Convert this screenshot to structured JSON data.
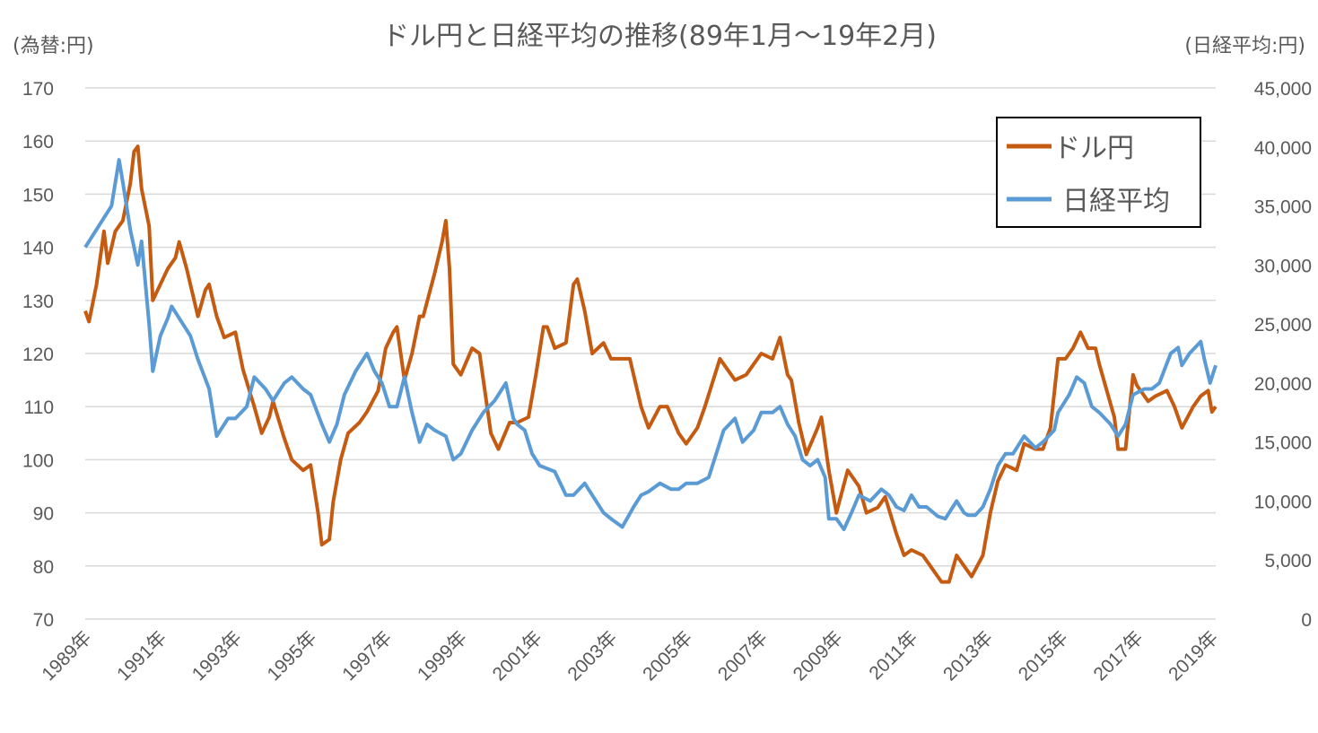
{
  "chart_data": {
    "type": "line",
    "title": "ドル円と日経平均の推移(89年1月～19年2月)",
    "ylabel_left": "(為替:円)",
    "ylabel_right": "(日経平均:円)",
    "xlim": [
      1989.0,
      2019.1
    ],
    "ylim_left": [
      70,
      170
    ],
    "ylim_right": [
      0,
      45000
    ],
    "yticks_left": [
      "70",
      "80",
      "90",
      "100",
      "110",
      "120",
      "130",
      "140",
      "150",
      "160",
      "170"
    ],
    "yticks_left_values": [
      70,
      80,
      90,
      100,
      110,
      120,
      130,
      140,
      150,
      160,
      170
    ],
    "yticks_right": [
      "0",
      "5,000",
      "10,000",
      "15,000",
      "20,000",
      "25,000",
      "30,000",
      "35,000",
      "40,000",
      "45,000"
    ],
    "yticks_right_values": [
      0,
      5000,
      10000,
      15000,
      20000,
      25000,
      30000,
      35000,
      40000,
      45000
    ],
    "xticks": [
      "1989年",
      "1991年",
      "1993年",
      "1995年",
      "1997年",
      "1999年",
      "2001年",
      "2003年",
      "2005年",
      "2007年",
      "2009年",
      "2011年",
      "2013年",
      "2015年",
      "2017年",
      "2019年"
    ],
    "xticks_values": [
      1989,
      1991,
      1993,
      1995,
      1997,
      1999,
      2001,
      2003,
      2005,
      2007,
      2009,
      2011,
      2013,
      2015,
      2017,
      2019
    ],
    "grid": true,
    "legend_placement": "top-right",
    "series": [
      {
        "name": "ドル円",
        "axis": "left",
        "color": "#C55A11",
        "points": [
          [
            1989.0,
            128
          ],
          [
            1989.1,
            126
          ],
          [
            1989.3,
            133
          ],
          [
            1989.5,
            143
          ],
          [
            1989.6,
            137
          ],
          [
            1989.8,
            143
          ],
          [
            1990.0,
            145
          ],
          [
            1990.2,
            152
          ],
          [
            1990.3,
            158
          ],
          [
            1990.4,
            159
          ],
          [
            1990.5,
            151
          ],
          [
            1990.7,
            144
          ],
          [
            1990.8,
            130
          ],
          [
            1991.0,
            133
          ],
          [
            1991.2,
            136
          ],
          [
            1991.4,
            138
          ],
          [
            1991.5,
            141
          ],
          [
            1991.7,
            136
          ],
          [
            1991.9,
            130
          ],
          [
            1992.0,
            127
          ],
          [
            1992.2,
            132
          ],
          [
            1992.3,
            133
          ],
          [
            1992.5,
            127
          ],
          [
            1992.7,
            123
          ],
          [
            1993.0,
            124
          ],
          [
            1993.2,
            117
          ],
          [
            1993.5,
            110
          ],
          [
            1993.7,
            105
          ],
          [
            1993.9,
            108
          ],
          [
            1994.0,
            111
          ],
          [
            1994.3,
            104
          ],
          [
            1994.5,
            100
          ],
          [
            1994.8,
            98
          ],
          [
            1995.0,
            99
          ],
          [
            1995.2,
            90
          ],
          [
            1995.3,
            84
          ],
          [
            1995.5,
            85
          ],
          [
            1995.6,
            92
          ],
          [
            1995.8,
            100
          ],
          [
            1996.0,
            105
          ],
          [
            1996.3,
            107
          ],
          [
            1996.5,
            109
          ],
          [
            1996.8,
            113
          ],
          [
            1997.0,
            121
          ],
          [
            1997.2,
            124
          ],
          [
            1997.3,
            125
          ],
          [
            1997.5,
            115
          ],
          [
            1997.7,
            120
          ],
          [
            1997.9,
            127
          ],
          [
            1998.0,
            127
          ],
          [
            1998.3,
            135
          ],
          [
            1998.5,
            141
          ],
          [
            1998.6,
            145
          ],
          [
            1998.7,
            136
          ],
          [
            1998.8,
            118
          ],
          [
            1999.0,
            116
          ],
          [
            1999.3,
            121
          ],
          [
            1999.5,
            120
          ],
          [
            1999.8,
            105
          ],
          [
            2000.0,
            102
          ],
          [
            2000.3,
            107
          ],
          [
            2000.5,
            107
          ],
          [
            2000.8,
            108
          ],
          [
            2001.0,
            116
          ],
          [
            2001.2,
            125
          ],
          [
            2001.3,
            125
          ],
          [
            2001.5,
            121
          ],
          [
            2001.8,
            122
          ],
          [
            2002.0,
            133
          ],
          [
            2002.1,
            134
          ],
          [
            2002.3,
            128
          ],
          [
            2002.5,
            120
          ],
          [
            2002.8,
            122
          ],
          [
            2003.0,
            119
          ],
          [
            2003.5,
            119
          ],
          [
            2003.8,
            110
          ],
          [
            2004.0,
            106
          ],
          [
            2004.3,
            110
          ],
          [
            2004.5,
            110
          ],
          [
            2004.8,
            105
          ],
          [
            2005.0,
            103
          ],
          [
            2005.3,
            106
          ],
          [
            2005.5,
            110
          ],
          [
            2005.9,
            119
          ],
          [
            2006.1,
            117
          ],
          [
            2006.3,
            115
          ],
          [
            2006.6,
            116
          ],
          [
            2006.8,
            118
          ],
          [
            2007.0,
            120
          ],
          [
            2007.3,
            119
          ],
          [
            2007.5,
            123
          ],
          [
            2007.7,
            116
          ],
          [
            2007.8,
            115
          ],
          [
            2008.0,
            107
          ],
          [
            2008.2,
            101
          ],
          [
            2008.5,
            106
          ],
          [
            2008.6,
            108
          ],
          [
            2008.8,
            98
          ],
          [
            2009.0,
            90
          ],
          [
            2009.3,
            98
          ],
          [
            2009.6,
            95
          ],
          [
            2009.8,
            90
          ],
          [
            2010.1,
            91
          ],
          [
            2010.3,
            93
          ],
          [
            2010.6,
            86
          ],
          [
            2010.8,
            82
          ],
          [
            2011.0,
            83
          ],
          [
            2011.3,
            82
          ],
          [
            2011.5,
            80
          ],
          [
            2011.8,
            77
          ],
          [
            2012.0,
            77
          ],
          [
            2012.2,
            82
          ],
          [
            2012.4,
            80
          ],
          [
            2012.6,
            78
          ],
          [
            2012.9,
            82
          ],
          [
            2013.1,
            90
          ],
          [
            2013.3,
            96
          ],
          [
            2013.5,
            99
          ],
          [
            2013.8,
            98
          ],
          [
            2014.0,
            103
          ],
          [
            2014.3,
            102
          ],
          [
            2014.5,
            102
          ],
          [
            2014.7,
            106
          ],
          [
            2014.9,
            119
          ],
          [
            2015.1,
            119
          ],
          [
            2015.3,
            121
          ],
          [
            2015.5,
            124
          ],
          [
            2015.7,
            121
          ],
          [
            2015.9,
            121
          ],
          [
            2016.0,
            118
          ],
          [
            2016.2,
            113
          ],
          [
            2016.4,
            108
          ],
          [
            2016.5,
            102
          ],
          [
            2016.7,
            102
          ],
          [
            2016.9,
            116
          ],
          [
            2017.0,
            114
          ],
          [
            2017.3,
            111
          ],
          [
            2017.5,
            112
          ],
          [
            2017.8,
            113
          ],
          [
            2018.0,
            110
          ],
          [
            2018.2,
            106
          ],
          [
            2018.5,
            110
          ],
          [
            2018.7,
            112
          ],
          [
            2018.9,
            113
          ],
          [
            2019.0,
            109
          ],
          [
            2019.1,
            110
          ]
        ]
      },
      {
        "name": "日経平均",
        "axis": "right",
        "color": "#5B9BD5",
        "points": [
          [
            1989.0,
            31500
          ],
          [
            1989.2,
            32500
          ],
          [
            1989.5,
            34000
          ],
          [
            1989.7,
            35000
          ],
          [
            1989.9,
            38900
          ],
          [
            1990.0,
            37000
          ],
          [
            1990.2,
            33000
          ],
          [
            1990.4,
            30000
          ],
          [
            1990.5,
            32000
          ],
          [
            1990.7,
            25000
          ],
          [
            1990.8,
            21000
          ],
          [
            1991.0,
            24000
          ],
          [
            1991.2,
            25500
          ],
          [
            1991.3,
            26500
          ],
          [
            1991.6,
            25000
          ],
          [
            1991.8,
            24000
          ],
          [
            1992.0,
            22000
          ],
          [
            1992.3,
            19500
          ],
          [
            1992.5,
            15500
          ],
          [
            1992.8,
            17000
          ],
          [
            1993.0,
            17000
          ],
          [
            1993.3,
            18000
          ],
          [
            1993.5,
            20500
          ],
          [
            1993.8,
            19500
          ],
          [
            1994.0,
            18500
          ],
          [
            1994.3,
            20000
          ],
          [
            1994.5,
            20500
          ],
          [
            1994.8,
            19500
          ],
          [
            1995.0,
            19000
          ],
          [
            1995.3,
            16500
          ],
          [
            1995.5,
            15000
          ],
          [
            1995.7,
            16500
          ],
          [
            1995.9,
            19000
          ],
          [
            1996.2,
            21000
          ],
          [
            1996.5,
            22500
          ],
          [
            1996.7,
            21000
          ],
          [
            1996.9,
            20000
          ],
          [
            1997.1,
            18000
          ],
          [
            1997.3,
            18000
          ],
          [
            1997.5,
            20500
          ],
          [
            1997.7,
            17500
          ],
          [
            1997.9,
            15000
          ],
          [
            1998.1,
            16500
          ],
          [
            1998.3,
            16000
          ],
          [
            1998.6,
            15500
          ],
          [
            1998.8,
            13500
          ],
          [
            1999.0,
            14000
          ],
          [
            1999.3,
            16000
          ],
          [
            1999.6,
            17500
          ],
          [
            1999.9,
            18500
          ],
          [
            2000.2,
            20000
          ],
          [
            2000.4,
            17000
          ],
          [
            2000.5,
            16500
          ],
          [
            2000.7,
            16000
          ],
          [
            2000.9,
            14000
          ],
          [
            2001.1,
            13000
          ],
          [
            2001.5,
            12500
          ],
          [
            2001.8,
            10500
          ],
          [
            2002.0,
            10500
          ],
          [
            2002.3,
            11500
          ],
          [
            2002.6,
            10000
          ],
          [
            2002.8,
            9000
          ],
          [
            2003.0,
            8500
          ],
          [
            2003.3,
            7800
          ],
          [
            2003.6,
            9500
          ],
          [
            2003.8,
            10500
          ],
          [
            2004.0,
            10800
          ],
          [
            2004.3,
            11500
          ],
          [
            2004.6,
            11000
          ],
          [
            2004.8,
            11000
          ],
          [
            2005.0,
            11500
          ],
          [
            2005.3,
            11500
          ],
          [
            2005.6,
            12000
          ],
          [
            2005.8,
            14000
          ],
          [
            2006.0,
            16000
          ],
          [
            2006.3,
            17000
          ],
          [
            2006.5,
            15000
          ],
          [
            2006.8,
            16000
          ],
          [
            2007.0,
            17500
          ],
          [
            2007.3,
            17500
          ],
          [
            2007.5,
            18000
          ],
          [
            2007.7,
            16500
          ],
          [
            2007.9,
            15500
          ],
          [
            2008.1,
            13500
          ],
          [
            2008.3,
            13000
          ],
          [
            2008.5,
            13500
          ],
          [
            2008.7,
            12000
          ],
          [
            2008.8,
            8500
          ],
          [
            2009.0,
            8500
          ],
          [
            2009.2,
            7600
          ],
          [
            2009.4,
            9000
          ],
          [
            2009.6,
            10500
          ],
          [
            2009.9,
            10000
          ],
          [
            2010.2,
            11000
          ],
          [
            2010.4,
            10500
          ],
          [
            2010.6,
            9500
          ],
          [
            2010.8,
            9200
          ],
          [
            2011.0,
            10500
          ],
          [
            2011.2,
            9500
          ],
          [
            2011.4,
            9500
          ],
          [
            2011.7,
            8700
          ],
          [
            2011.9,
            8500
          ],
          [
            2012.2,
            10000
          ],
          [
            2012.4,
            9000
          ],
          [
            2012.5,
            8800
          ],
          [
            2012.7,
            8800
          ],
          [
            2012.9,
            9500
          ],
          [
            2013.1,
            11000
          ],
          [
            2013.3,
            13000
          ],
          [
            2013.5,
            14000
          ],
          [
            2013.7,
            14000
          ],
          [
            2014.0,
            15500
          ],
          [
            2014.3,
            14500
          ],
          [
            2014.5,
            15000
          ],
          [
            2014.8,
            16000
          ],
          [
            2014.9,
            17500
          ],
          [
            2015.2,
            19000
          ],
          [
            2015.4,
            20500
          ],
          [
            2015.6,
            20000
          ],
          [
            2015.8,
            18000
          ],
          [
            2016.0,
            17500
          ],
          [
            2016.3,
            16500
          ],
          [
            2016.5,
            15500
          ],
          [
            2016.7,
            16500
          ],
          [
            2016.9,
            19000
          ],
          [
            2017.2,
            19500
          ],
          [
            2017.4,
            19500
          ],
          [
            2017.6,
            20000
          ],
          [
            2017.9,
            22500
          ],
          [
            2018.1,
            23000
          ],
          [
            2018.2,
            21500
          ],
          [
            2018.4,
            22500
          ],
          [
            2018.7,
            23500
          ],
          [
            2018.8,
            22000
          ],
          [
            2018.95,
            20000
          ],
          [
            2019.1,
            21500
          ]
        ]
      }
    ]
  }
}
